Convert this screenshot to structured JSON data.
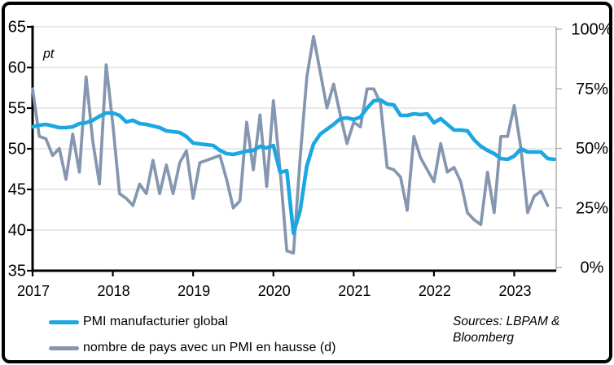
{
  "chart_data": {
    "type": "line",
    "title": "",
    "ylabel_left": "pt",
    "x_tick_labels": [
      "2017",
      "2018",
      "2019",
      "2020",
      "2021",
      "2022",
      "2023"
    ],
    "x_monthly_start": "2017-01",
    "y_left_ticks": [
      65,
      60,
      55,
      50,
      45,
      40,
      35
    ],
    "y_left_range": [
      35,
      65
    ],
    "y_right_ticks": [
      {
        "label": "100%",
        "value": 100
      },
      {
        "label": "75%",
        "value": 75
      },
      {
        "label": "50%",
        "value": 50
      },
      {
        "label": "25%",
        "value": 25
      },
      {
        "label": "0%",
        "value": 0
      }
    ],
    "y_right_range": [
      0,
      100
    ],
    "grid": "horizontal",
    "legend_position": "bottom-left",
    "source": "Sources: LBPAM & Bloomberg",
    "colors": {
      "grid": "#D9D9D9",
      "axis": "#000000",
      "right_axis": "#A6A6A6"
    },
    "series": [
      {
        "name": "PMI manufacturier global",
        "axis": "left",
        "unit": "pt",
        "color": "#1BA7E1",
        "monthly_from": "2017-01",
        "values": [
          52.7,
          52.9,
          53.0,
          52.8,
          52.6,
          52.6,
          52.7,
          53.1,
          53.2,
          53.5,
          54.0,
          54.4,
          54.4,
          54.1,
          53.3,
          53.5,
          53.1,
          53.0,
          52.8,
          52.6,
          52.2,
          52.1,
          52.0,
          51.5,
          50.7,
          50.6,
          50.5,
          50.4,
          49.8,
          49.4,
          49.3,
          49.5,
          49.7,
          49.8,
          50.3,
          50.1,
          50.4,
          47.1,
          47.3,
          39.6,
          42.4,
          47.9,
          50.6,
          51.8,
          52.4,
          53.0,
          53.7,
          53.8,
          53.6,
          53.9,
          55.0,
          55.9,
          56.0,
          55.5,
          55.4,
          54.1,
          54.1,
          54.3,
          54.2,
          54.3,
          53.2,
          53.7,
          53.0,
          52.3,
          52.3,
          52.2,
          51.1,
          50.3,
          49.8,
          49.4,
          48.8,
          48.7,
          49.1,
          50.0,
          49.6,
          49.6,
          49.6,
          48.8,
          48.7
        ]
      },
      {
        "name": "nombre de pays avec un PMI en hausse (d)",
        "axis": "right",
        "unit": "%",
        "color": "#8496B0",
        "monthly_from": "2017-01",
        "values": [
          75,
          55,
          54,
          47,
          50,
          37,
          56,
          40,
          80,
          53,
          35,
          85,
          60,
          31,
          29,
          26,
          35,
          31,
          45,
          31,
          43,
          31,
          44,
          49,
          29,
          44,
          45,
          46,
          47,
          37,
          25,
          28,
          61,
          41,
          64,
          34,
          70,
          41,
          7,
          6,
          46,
          80,
          97,
          82,
          67,
          77,
          64,
          52,
          61,
          59,
          75,
          75,
          69,
          42,
          41,
          38,
          24,
          55,
          46,
          41,
          36,
          52,
          40,
          42,
          36,
          23,
          20,
          18,
          40,
          23,
          55,
          55,
          68,
          50,
          23,
          30,
          32,
          26
        ]
      }
    ]
  }
}
